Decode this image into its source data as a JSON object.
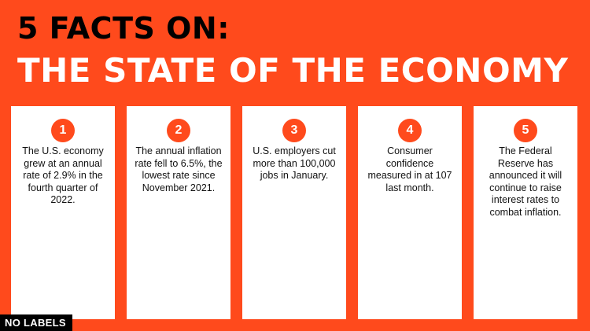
{
  "header": {
    "title_line_1": "5 FACTS ON:",
    "title_line_2": "THE STATE OF THE ECONOMY"
  },
  "facts": [
    {
      "number": "1",
      "text": "The U.S. economy grew at an annual rate of 2.9% in the fourth quarter of 2022."
    },
    {
      "number": "2",
      "text": "The annual inflation rate fell to 6.5%, the lowest rate since November 2021."
    },
    {
      "number": "3",
      "text": "U.S. employers cut more than 100,000 jobs in January."
    },
    {
      "number": "4",
      "text": "Consumer confidence measured in at 107 last month."
    },
    {
      "number": "5",
      "text": "The Federal Reserve has announced it will continue to raise interest rates to combat inflation."
    }
  ],
  "footer": {
    "badge_label": "NO LABELS"
  },
  "colors": {
    "background": "#FF4A1C",
    "accent": "#FF4A1C",
    "card": "#FFFFFF",
    "title_primary": "#000000",
    "title_secondary": "#FFFFFF"
  }
}
